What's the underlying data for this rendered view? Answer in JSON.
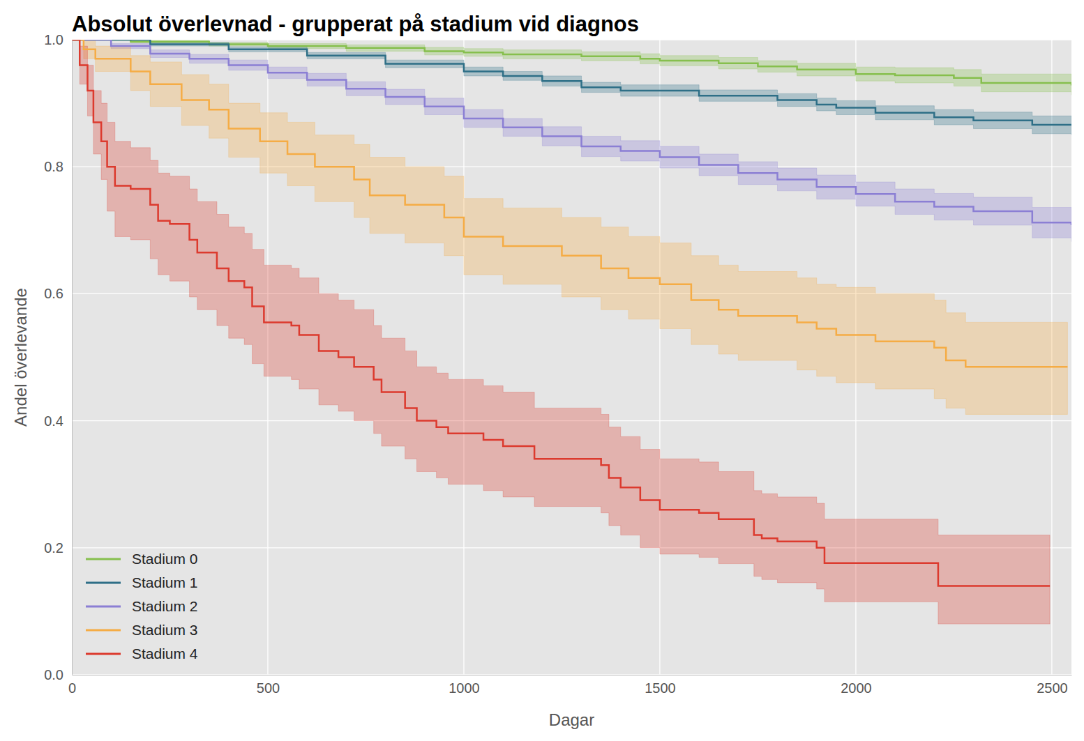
{
  "chart_data": {
    "type": "line",
    "line_style": "step",
    "title": "Absolut överlevnad - grupperat på stadium vid diagnos",
    "x_label": "Dagar",
    "y_label": "Andel överlevande",
    "xlim": [
      0,
      2550
    ],
    "ylim": [
      0,
      1
    ],
    "xticks": [
      0,
      500,
      1000,
      1500,
      2000,
      2500
    ],
    "yticks": [
      {
        "value": 0,
        "label": "0.0"
      },
      0.2,
      0.4,
      0.6,
      0.8,
      {
        "value": 1,
        "label": "1.0"
      }
    ],
    "grid": true,
    "legend": "lower left",
    "series": [
      {
        "name": "Stadium 0",
        "color": "#86bf4d",
        "x": [
          0,
          150,
          350,
          500,
          700,
          900,
          1000,
          1100,
          1300,
          1450,
          1500,
          1650,
          1750,
          1850,
          2000,
          2100,
          2250,
          2320,
          2550
        ],
        "values": [
          1,
          0.997,
          0.993,
          0.99,
          0.987,
          0.982,
          0.98,
          0.977,
          0.974,
          0.97,
          0.967,
          0.963,
          0.958,
          0.953,
          0.946,
          0.944,
          0.94,
          0.932,
          0.928
        ],
        "lower": [
          1,
          0.995,
          0.99,
          0.986,
          0.982,
          0.976,
          0.974,
          0.97,
          0.967,
          0.962,
          0.959,
          0.954,
          0.949,
          0.943,
          0.935,
          0.932,
          0.927,
          0.918,
          0.913
        ],
        "upper": [
          1,
          0.999,
          0.996,
          0.994,
          0.992,
          0.988,
          0.986,
          0.984,
          0.981,
          0.978,
          0.975,
          0.972,
          0.967,
          0.963,
          0.957,
          0.956,
          0.953,
          0.946,
          0.943
        ]
      },
      {
        "name": "Stadium 1",
        "color": "#2e6f87",
        "x": [
          0,
          200,
          400,
          600,
          800,
          1000,
          1100,
          1200,
          1300,
          1400,
          1600,
          1800,
          1900,
          1950,
          2050,
          2200,
          2300,
          2450,
          2550
        ],
        "values": [
          1,
          0.993,
          0.985,
          0.975,
          0.962,
          0.95,
          0.943,
          0.935,
          0.925,
          0.92,
          0.912,
          0.905,
          0.898,
          0.893,
          0.885,
          0.878,
          0.873,
          0.866,
          0.865
        ],
        "lower": [
          1,
          0.99,
          0.981,
          0.97,
          0.956,
          0.943,
          0.936,
          0.927,
          0.917,
          0.911,
          0.903,
          0.895,
          0.888,
          0.882,
          0.874,
          0.866,
          0.86,
          0.852,
          0.85
        ],
        "upper": [
          1,
          0.996,
          0.989,
          0.98,
          0.968,
          0.957,
          0.95,
          0.943,
          0.933,
          0.929,
          0.921,
          0.915,
          0.908,
          0.904,
          0.896,
          0.89,
          0.886,
          0.88,
          0.88
        ]
      },
      {
        "name": "Stadium 2",
        "color": "#8b7fd4",
        "x": [
          0,
          100,
          200,
          300,
          400,
          500,
          600,
          700,
          800,
          900,
          1000,
          1100,
          1200,
          1300,
          1400,
          1500,
          1600,
          1700,
          1800,
          1900,
          2000,
          2100,
          2200,
          2300,
          2450,
          2550
        ],
        "values": [
          1,
          0.99,
          0.978,
          0.97,
          0.96,
          0.948,
          0.937,
          0.923,
          0.91,
          0.895,
          0.876,
          0.862,
          0.848,
          0.832,
          0.825,
          0.815,
          0.803,
          0.79,
          0.78,
          0.768,
          0.757,
          0.745,
          0.737,
          0.73,
          0.712,
          0.708
        ],
        "lower": [
          1,
          0.986,
          0.972,
          0.963,
          0.952,
          0.939,
          0.927,
          0.912,
          0.898,
          0.882,
          0.862,
          0.848,
          0.833,
          0.816,
          0.809,
          0.798,
          0.786,
          0.772,
          0.762,
          0.749,
          0.738,
          0.725,
          0.716,
          0.708,
          0.688,
          0.682
        ],
        "upper": [
          1,
          0.994,
          0.984,
          0.977,
          0.968,
          0.957,
          0.947,
          0.934,
          0.922,
          0.908,
          0.89,
          0.876,
          0.863,
          0.848,
          0.841,
          0.832,
          0.82,
          0.808,
          0.798,
          0.787,
          0.776,
          0.765,
          0.758,
          0.752,
          0.736,
          0.734
        ]
      },
      {
        "name": "Stadium 3",
        "color": "#f5ac45",
        "x": [
          0,
          30,
          60,
          150,
          200,
          280,
          350,
          400,
          480,
          550,
          620,
          720,
          760,
          850,
          950,
          1000,
          1100,
          1250,
          1350,
          1420,
          1500,
          1580,
          1650,
          1700,
          1850,
          1900,
          1950,
          2050,
          2200,
          2230,
          2280,
          2540
        ],
        "values": [
          1,
          0.985,
          0.97,
          0.95,
          0.93,
          0.905,
          0.89,
          0.86,
          0.84,
          0.82,
          0.8,
          0.78,
          0.755,
          0.74,
          0.72,
          0.69,
          0.675,
          0.66,
          0.64,
          0.625,
          0.615,
          0.59,
          0.575,
          0.565,
          0.555,
          0.545,
          0.535,
          0.525,
          0.515,
          0.495,
          0.485,
          0.485
        ],
        "lower": [
          1,
          0.97,
          0.95,
          0.92,
          0.895,
          0.865,
          0.845,
          0.815,
          0.79,
          0.77,
          0.745,
          0.72,
          0.695,
          0.68,
          0.66,
          0.63,
          0.615,
          0.595,
          0.575,
          0.56,
          0.545,
          0.52,
          0.505,
          0.495,
          0.48,
          0.47,
          0.46,
          0.45,
          0.435,
          0.42,
          0.41,
          0.41
        ],
        "upper": [
          1,
          1,
          0.99,
          0.975,
          0.965,
          0.945,
          0.93,
          0.9,
          0.885,
          0.87,
          0.85,
          0.835,
          0.815,
          0.8,
          0.785,
          0.75,
          0.735,
          0.72,
          0.705,
          0.69,
          0.68,
          0.66,
          0.645,
          0.635,
          0.625,
          0.615,
          0.61,
          0.6,
          0.59,
          0.57,
          0.555,
          0.555
        ]
      },
      {
        "name": "Stadium 4",
        "color": "#dc3a2e",
        "x": [
          0,
          20,
          40,
          55,
          75,
          90,
          110,
          150,
          200,
          220,
          250,
          300,
          320,
          370,
          400,
          440,
          460,
          490,
          560,
          580,
          630,
          680,
          720,
          770,
          790,
          850,
          880,
          930,
          960,
          1050,
          1100,
          1180,
          1350,
          1370,
          1400,
          1450,
          1500,
          1600,
          1650,
          1740,
          1760,
          1800,
          1900,
          1920,
          2210,
          2495
        ],
        "values": [
          1,
          0.96,
          0.92,
          0.87,
          0.84,
          0.8,
          0.77,
          0.765,
          0.74,
          0.715,
          0.71,
          0.685,
          0.665,
          0.64,
          0.62,
          0.61,
          0.58,
          0.555,
          0.55,
          0.535,
          0.51,
          0.5,
          0.485,
          0.465,
          0.445,
          0.42,
          0.4,
          0.39,
          0.38,
          0.37,
          0.36,
          0.34,
          0.33,
          0.31,
          0.295,
          0.275,
          0.26,
          0.255,
          0.245,
          0.22,
          0.215,
          0.21,
          0.2,
          0.176,
          0.14,
          0.14
        ],
        "lower": [
          1,
          0.93,
          0.88,
          0.82,
          0.78,
          0.73,
          0.69,
          0.685,
          0.655,
          0.63,
          0.62,
          0.595,
          0.575,
          0.55,
          0.53,
          0.52,
          0.49,
          0.47,
          0.465,
          0.45,
          0.425,
          0.415,
          0.4,
          0.38,
          0.36,
          0.34,
          0.32,
          0.31,
          0.3,
          0.29,
          0.28,
          0.265,
          0.255,
          0.235,
          0.22,
          0.2,
          0.19,
          0.185,
          0.175,
          0.155,
          0.15,
          0.145,
          0.135,
          0.115,
          0.08,
          0.08
        ],
        "upper": [
          1,
          0.99,
          0.96,
          0.92,
          0.9,
          0.87,
          0.84,
          0.83,
          0.81,
          0.79,
          0.785,
          0.765,
          0.745,
          0.725,
          0.705,
          0.695,
          0.67,
          0.645,
          0.64,
          0.625,
          0.6,
          0.59,
          0.575,
          0.55,
          0.53,
          0.51,
          0.485,
          0.475,
          0.465,
          0.455,
          0.445,
          0.42,
          0.41,
          0.39,
          0.375,
          0.355,
          0.34,
          0.335,
          0.32,
          0.29,
          0.285,
          0.28,
          0.27,
          0.245,
          0.22,
          0.22
        ]
      }
    ]
  }
}
